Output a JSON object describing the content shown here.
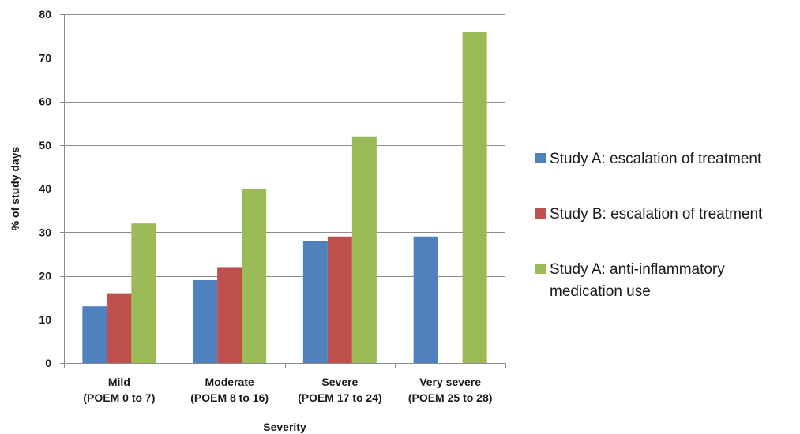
{
  "chart_data": {
    "type": "bar",
    "title": "",
    "xlabel": "Severity",
    "ylabel": "% of study days",
    "ylim": [
      0,
      80
    ],
    "yticks": [
      0,
      10,
      20,
      30,
      40,
      50,
      60,
      70,
      80
    ],
    "grid": true,
    "legend_position": "right",
    "categories": [
      [
        "Mild",
        "(POEM 0 to 7)"
      ],
      [
        "Moderate",
        "(POEM 8 to 16)"
      ],
      [
        "Severe",
        "(POEM 17 to 24)"
      ],
      [
        "Very severe",
        "(POEM 25 to 28)"
      ]
    ],
    "series": [
      {
        "name": "Study A: escalation of treatment",
        "legend_lines": [
          "Study A: escalation of treatment"
        ],
        "color": "#4f81bd",
        "values": [
          13,
          19,
          28,
          29
        ]
      },
      {
        "name": "Study B: escalation of treatment",
        "legend_lines": [
          "Study B: escalation of treatment"
        ],
        "color": "#c0504d",
        "values": [
          16,
          22,
          29,
          null
        ]
      },
      {
        "name": "Study A: anti-inflammatory medication use",
        "legend_lines": [
          "Study A: anti-inflammatory",
          "medication use"
        ],
        "color": "#9bbb59",
        "values": [
          32,
          40,
          52,
          76
        ]
      }
    ]
  }
}
